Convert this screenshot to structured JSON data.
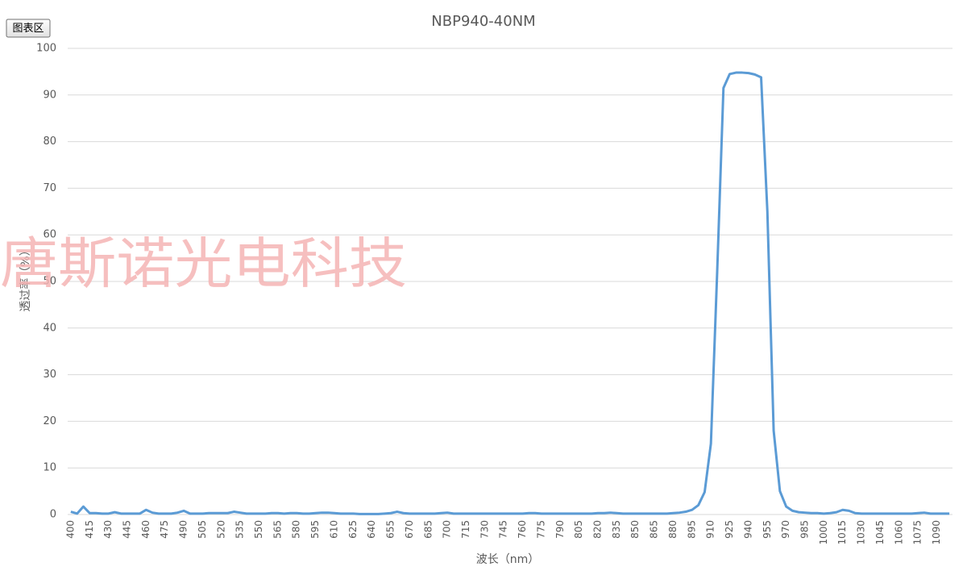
{
  "button": "图表区",
  "chart_data": {
    "type": "line",
    "title": "NBP940-40NM",
    "x_label": "波长（nm）",
    "y_label": "透过率（%）",
    "watermark": "唐斯诺光电科技",
    "categories": [
      "400",
      null,
      null,
      "415",
      null,
      null,
      "430",
      null,
      null,
      "445",
      null,
      null,
      "460",
      null,
      null,
      "475",
      null,
      null,
      "490",
      null,
      null,
      "505",
      null,
      null,
      "520",
      null,
      null,
      "535",
      null,
      null,
      "550",
      null,
      null,
      "565",
      null,
      null,
      "580",
      null,
      null,
      "595",
      null,
      null,
      "610",
      null,
      null,
      "625",
      null,
      null,
      "640",
      null,
      null,
      "655",
      null,
      null,
      "670",
      null,
      null,
      "685",
      null,
      null,
      "700",
      null,
      null,
      "715",
      null,
      null,
      "730",
      null,
      null,
      "745",
      null,
      null,
      "760",
      null,
      null,
      "775",
      null,
      null,
      "790",
      null,
      null,
      "805",
      null,
      null,
      "820",
      null,
      null,
      "835",
      null,
      null,
      "850",
      null,
      null,
      "865",
      null,
      null,
      "880",
      null,
      null,
      "895",
      null,
      null,
      "910",
      null,
      null,
      "925",
      null,
      null,
      "940",
      null,
      null,
      "955",
      null,
      null,
      "970",
      null,
      null,
      "985",
      null,
      null,
      "1000",
      null,
      null,
      "1015",
      null,
      null,
      "1030",
      null,
      null,
      "1045",
      null,
      null,
      "1060",
      null,
      null,
      "1075",
      null,
      null,
      "1090",
      null,
      null
    ],
    "values": [
      0.6,
      0.2,
      1.7,
      0.3,
      0.3,
      0.2,
      0.2,
      0.5,
      0.2,
      0.2,
      0.2,
      0.2,
      1.0,
      0.4,
      0.2,
      0.2,
      0.2,
      0.4,
      0.8,
      0.2,
      0.2,
      0.2,
      0.3,
      0.3,
      0.3,
      0.3,
      0.6,
      0.4,
      0.2,
      0.2,
      0.2,
      0.2,
      0.3,
      0.3,
      0.2,
      0.3,
      0.3,
      0.2,
      0.2,
      0.3,
      0.4,
      0.4,
      0.3,
      0.2,
      0.2,
      0.2,
      0.1,
      0.1,
      0.1,
      0.1,
      0.2,
      0.3,
      0.6,
      0.3,
      0.2,
      0.2,
      0.2,
      0.2,
      0.2,
      0.3,
      0.4,
      0.2,
      0.2,
      0.2,
      0.2,
      0.2,
      0.2,
      0.2,
      0.2,
      0.2,
      0.2,
      0.2,
      0.2,
      0.3,
      0.3,
      0.2,
      0.2,
      0.2,
      0.2,
      0.2,
      0.2,
      0.2,
      0.2,
      0.2,
      0.3,
      0.3,
      0.4,
      0.3,
      0.2,
      0.2,
      0.2,
      0.2,
      0.2,
      0.2,
      0.2,
      0.2,
      0.3,
      0.4,
      0.6,
      1.0,
      2.0,
      4.8,
      15.2,
      52,
      91.5,
      94.5,
      94.8,
      94.8,
      94.7,
      94.4,
      93.8,
      65,
      18,
      5,
      1.7,
      0.8,
      0.5,
      0.4,
      0.3,
      0.3,
      0.2,
      0.3,
      0.5,
      1.0,
      0.8,
      0.3,
      0.2,
      0.2,
      0.2,
      0.2,
      0.2,
      0.2,
      0.2,
      0.2,
      0.2,
      0.3,
      0.4,
      0.2,
      0.2,
      0.2,
      0.2
    ],
    "color": "#5b9bd5",
    "ylim": [
      0,
      100
    ],
    "yticks": [
      0,
      10,
      20,
      30,
      40,
      50,
      60,
      70,
      80,
      90,
      100
    ],
    "grid": true
  }
}
